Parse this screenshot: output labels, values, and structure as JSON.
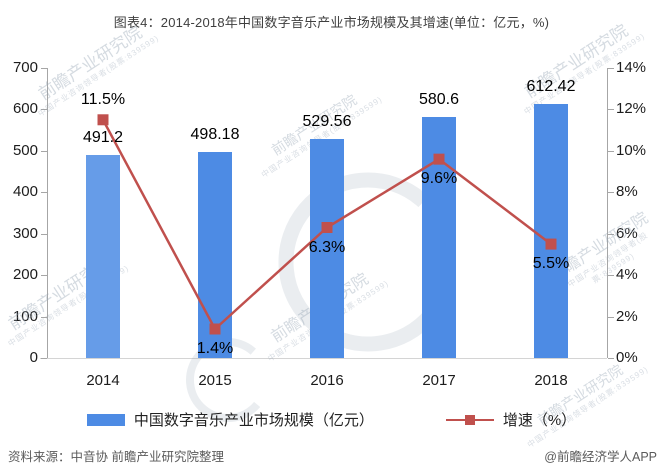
{
  "title": "图表4：2014-2018年中国数字音乐产业市场规模及其增速(单位：亿元，%)",
  "chart_data": {
    "type": "bar+line combo",
    "categories": [
      "2014",
      "2015",
      "2016",
      "2017",
      "2018"
    ],
    "series": [
      {
        "name": "中国数字音乐产业市场规模（亿元）",
        "type": "bar",
        "axis": "left",
        "values": [
          491.2,
          498.18,
          529.56,
          580.6,
          612.42
        ]
      },
      {
        "name": "增速（%）",
        "type": "line",
        "axis": "right",
        "values": [
          11.5,
          1.4,
          6.3,
          9.6,
          5.5
        ]
      }
    ],
    "bar_labels": [
      "491.2",
      "498.18",
      "529.56",
      "580.6",
      "612.42"
    ],
    "line_labels": [
      "11.5%",
      "1.4%",
      "6.3%",
      "9.6%",
      "5.5%"
    ],
    "left_axis": {
      "min": 0,
      "max": 700,
      "step": 100,
      "ticks": [
        "0",
        "100",
        "200",
        "300",
        "400",
        "500",
        "600",
        "700"
      ]
    },
    "right_axis": {
      "min": 0,
      "max": 14,
      "step": 2,
      "ticks": [
        "0%",
        "2%",
        "4%",
        "6%",
        "8%",
        "10%",
        "12%",
        "14%"
      ]
    },
    "grid": "off",
    "legend_position": "bottom",
    "colors": {
      "bar_first": "#669CE8",
      "bar": "#4D8BE4",
      "line": "#C0504D"
    }
  },
  "legend": [
    {
      "label": "中国数字音乐产业市场规模（亿元）",
      "swatch": "bar"
    },
    {
      "label": "增速（%）",
      "swatch": "line"
    }
  ],
  "footer": {
    "source": "资料来源：中音协 前瞻产业研究院整理",
    "credit": "@前瞻经济学人APP"
  },
  "watermark": {
    "text": "前瞻产业研究院",
    "subtext": "中国产业咨询领导者(股票:839599)"
  }
}
